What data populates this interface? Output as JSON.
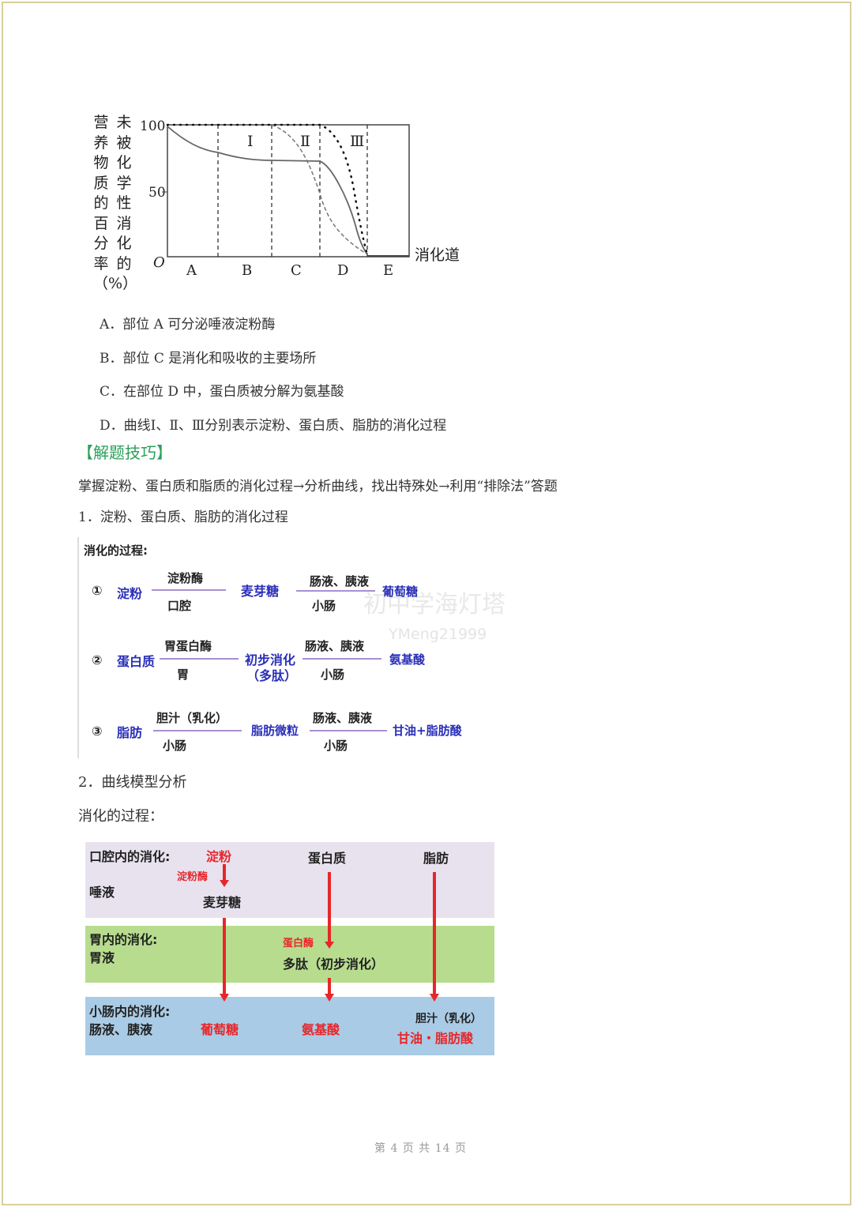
{
  "figure": {
    "y_axis_label_col1": "营养物质的百分率（%）",
    "y_axis_label_col2": "未被化学性消化的",
    "y_ticks": [
      "100",
      "50"
    ],
    "origin": "O",
    "x_axis_label": "消化道",
    "x_categories": [
      "A",
      "B",
      "C",
      "D",
      "E"
    ],
    "curve_labels": [
      "Ⅰ",
      "Ⅱ",
      "Ⅲ"
    ]
  },
  "options": [
    "A．部位 A 可分泌唾液淀粉酶",
    "B．部位 C 是消化和吸收的主要场所",
    "C．在部位 D 中，蛋白质被分解为氨基酸",
    "D．曲线Ⅰ、Ⅱ、Ⅲ分别表示淀粉、蛋白质、脂肪的消化过程"
  ],
  "tips_heading": "【解题技巧】",
  "tips_text": "掌握淀粉、蛋白质和脂质的消化过程→分析曲线，找出特殊处→利用“排除法”答题",
  "section1_title": "1．淀粉、蛋白质、脂肪的消化过程",
  "diagram1": {
    "title": "消化的过程:",
    "rows": [
      {
        "num": "①",
        "start": "淀粉",
        "enzyme1": "淀粉酶",
        "place1": "口腔",
        "mid": "麦芽糖",
        "enzyme2": "肠液、胰液",
        "place2": "小肠",
        "end": "葡萄糖"
      },
      {
        "num": "②",
        "start": "蛋白质",
        "enzyme1": "胃蛋白酶",
        "place1": "胃",
        "mid": "初步消化",
        "mid2": "（多肽）",
        "enzyme2": "肠液、胰液",
        "place2": "小肠",
        "end": "氨基酸"
      },
      {
        "num": "③",
        "start": "脂肪",
        "enzyme1": "胆汁（乳化）",
        "place1": "小肠",
        "mid": "脂肪微粒",
        "enzyme2": "肠液、胰液",
        "place2": "小肠",
        "end": "甘油+脂肪酸"
      }
    ],
    "watermark": "初中学海灯塔",
    "watermark_id": "YMeng21999"
  },
  "section2_title": "2．曲线模型分析",
  "section2_sub": "消化的过程：",
  "diagram2": {
    "mouth_title": "口腔内的消化:",
    "mouth_juice": "唾液",
    "starch": "淀粉",
    "amylase": "淀粉酶",
    "maltose": "麦芽糖",
    "protein": "蛋白质",
    "fat": "脂肪",
    "stomach_title": "胃内的消化:",
    "stomach_juice": "胃液",
    "pepsin": "蛋白酶",
    "peptide": "多肽（初步消化）",
    "intestine_title": "小肠内的消化:",
    "intestine_juice": "肠液、胰液",
    "glucose": "葡萄糖",
    "amino": "氨基酸",
    "bile": "胆汁（乳化）",
    "glycerol": "甘油・脂肪酸",
    "colors": {
      "mouth": "#e8e2ef",
      "stomach": "#b7dc8e",
      "intestine": "#a9cbe5",
      "arrow": "#e8262a"
    }
  },
  "footer": "第 4 页 共 14 页"
}
